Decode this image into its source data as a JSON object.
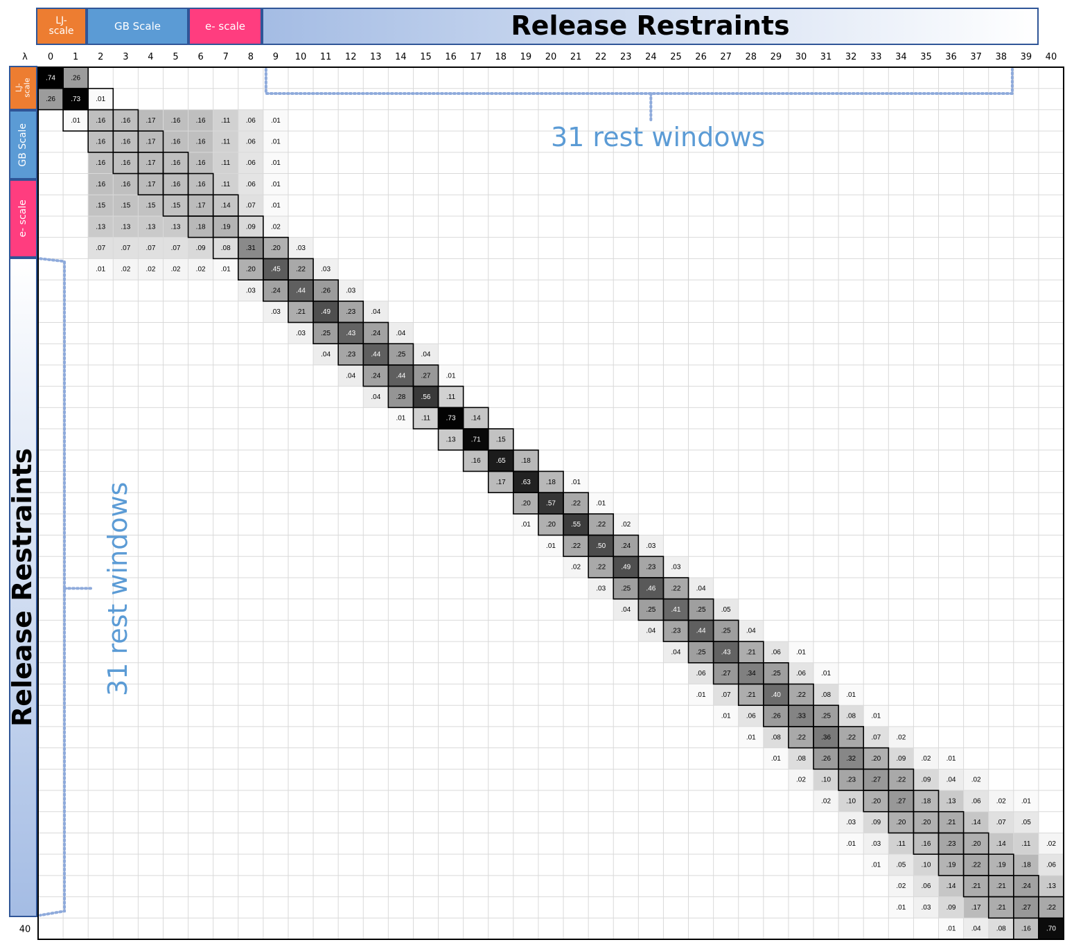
{
  "colors": {
    "lj": "#ed7d31",
    "gb": "#5b9bd5",
    "e": "#ff3d7f",
    "release_start": "#a4bce4",
    "release_end": "#ffffff",
    "band_border": "#2f5597",
    "annotation": "#5b9bd5"
  },
  "top_bands": {
    "lj": "LJ-\nscale",
    "gb": "GB Scale",
    "e": "e- scale",
    "release": "Release Restraints"
  },
  "left_bands": {
    "lj": "LJ-\nscale",
    "gb": "GB Scale",
    "e": "e- scale",
    "release": "Release Restraints"
  },
  "annotations": {
    "top": "31 rest windows",
    "left": "31 rest windows"
  },
  "chart_data": {
    "type": "heatmap",
    "corner_label": "λ",
    "x_tick_labels": [
      "0",
      "1",
      "2",
      "3",
      "4",
      "5",
      "6",
      "7",
      "8",
      "9",
      "10",
      "11",
      "12",
      "13",
      "14",
      "15",
      "16",
      "17",
      "18",
      "19",
      "20",
      "21",
      "22",
      "23",
      "24",
      "25",
      "26",
      "27",
      "28",
      "29",
      "30",
      "31",
      "32",
      "33",
      "34",
      "35",
      "36",
      "37",
      "38",
      "39",
      "40"
    ],
    "y_tick_labels": [
      "",
      "",
      "",
      "",
      "",
      "",
      "",
      "",
      "",
      "",
      "",
      "",
      "",
      "",
      "",
      "",
      "",
      "",
      "",
      "",
      "",
      "",
      "",
      "",
      "",
      "",
      "",
      "",
      "",
      "",
      "",
      "",
      "",
      "",
      "",
      "",
      "",
      "",
      "",
      "",
      "40"
    ],
    "rows": [
      [
        [
          0,
          ".74"
        ],
        [
          1,
          ".26"
        ]
      ],
      [
        [
          0,
          ".26"
        ],
        [
          1,
          ".73"
        ],
        [
          2,
          ".01"
        ]
      ],
      [
        [
          1,
          ".01"
        ],
        [
          2,
          ".16"
        ],
        [
          3,
          ".16"
        ],
        [
          4,
          ".17"
        ],
        [
          5,
          ".16"
        ],
        [
          6,
          ".16"
        ],
        [
          7,
          ".11"
        ],
        [
          8,
          ".06"
        ],
        [
          9,
          ".01"
        ]
      ],
      [
        [
          2,
          ".16"
        ],
        [
          3,
          ".16"
        ],
        [
          4,
          ".17"
        ],
        [
          5,
          ".16"
        ],
        [
          6,
          ".16"
        ],
        [
          7,
          ".11"
        ],
        [
          8,
          ".06"
        ],
        [
          9,
          ".01"
        ]
      ],
      [
        [
          2,
          ".16"
        ],
        [
          3,
          ".16"
        ],
        [
          4,
          ".17"
        ],
        [
          5,
          ".16"
        ],
        [
          6,
          ".16"
        ],
        [
          7,
          ".11"
        ],
        [
          8,
          ".06"
        ],
        [
          9,
          ".01"
        ]
      ],
      [
        [
          2,
          ".16"
        ],
        [
          3,
          ".16"
        ],
        [
          4,
          ".17"
        ],
        [
          5,
          ".16"
        ],
        [
          6,
          ".16"
        ],
        [
          7,
          ".11"
        ],
        [
          8,
          ".06"
        ],
        [
          9,
          ".01"
        ]
      ],
      [
        [
          2,
          ".15"
        ],
        [
          3,
          ".15"
        ],
        [
          4,
          ".15"
        ],
        [
          5,
          ".15"
        ],
        [
          6,
          ".17"
        ],
        [
          7,
          ".14"
        ],
        [
          8,
          ".07"
        ],
        [
          9,
          ".01"
        ]
      ],
      [
        [
          2,
          ".13"
        ],
        [
          3,
          ".13"
        ],
        [
          4,
          ".13"
        ],
        [
          5,
          ".13"
        ],
        [
          6,
          ".18"
        ],
        [
          7,
          ".19"
        ],
        [
          8,
          ".09"
        ],
        [
          9,
          ".02"
        ]
      ],
      [
        [
          2,
          ".07"
        ],
        [
          3,
          ".07"
        ],
        [
          4,
          ".07"
        ],
        [
          5,
          ".07"
        ],
        [
          6,
          ".09"
        ],
        [
          7,
          ".08"
        ],
        [
          8,
          ".31"
        ],
        [
          9,
          ".20"
        ],
        [
          10,
          ".03"
        ]
      ],
      [
        [
          2,
          ".01"
        ],
        [
          3,
          ".02"
        ],
        [
          4,
          ".02"
        ],
        [
          5,
          ".02"
        ],
        [
          6,
          ".02"
        ],
        [
          7,
          ".01"
        ],
        [
          8,
          ".20"
        ],
        [
          9,
          ".45"
        ],
        [
          10,
          ".22"
        ],
        [
          11,
          ".03"
        ]
      ],
      [
        [
          8,
          ".03"
        ],
        [
          9,
          ".24"
        ],
        [
          10,
          ".44"
        ],
        [
          11,
          ".26"
        ],
        [
          12,
          ".03"
        ]
      ],
      [
        [
          9,
          ".03"
        ],
        [
          10,
          ".21"
        ],
        [
          11,
          ".49"
        ],
        [
          12,
          ".23"
        ],
        [
          13,
          ".04"
        ]
      ],
      [
        [
          10,
          ".03"
        ],
        [
          11,
          ".25"
        ],
        [
          12,
          ".43"
        ],
        [
          13,
          ".24"
        ],
        [
          14,
          ".04"
        ]
      ],
      [
        [
          11,
          ".04"
        ],
        [
          12,
          ".23"
        ],
        [
          13,
          ".44"
        ],
        [
          14,
          ".25"
        ],
        [
          15,
          ".04"
        ]
      ],
      [
        [
          12,
          ".04"
        ],
        [
          13,
          ".24"
        ],
        [
          14,
          ".44"
        ],
        [
          15,
          ".27"
        ],
        [
          16,
          ".01"
        ]
      ],
      [
        [
          13,
          ".04"
        ],
        [
          14,
          ".28"
        ],
        [
          15,
          ".56"
        ],
        [
          16,
          ".11"
        ]
      ],
      [
        [
          14,
          ".01"
        ],
        [
          15,
          ".11"
        ],
        [
          16,
          ".73"
        ],
        [
          17,
          ".14"
        ]
      ],
      [
        [
          16,
          ".13"
        ],
        [
          17,
          ".71"
        ],
        [
          18,
          ".15"
        ]
      ],
      [
        [
          17,
          ".16"
        ],
        [
          18,
          ".65"
        ],
        [
          19,
          ".18"
        ]
      ],
      [
        [
          18,
          ".17"
        ],
        [
          19,
          ".63"
        ],
        [
          20,
          ".18"
        ],
        [
          21,
          ".01"
        ]
      ],
      [
        [
          19,
          ".20"
        ],
        [
          20,
          ".57"
        ],
        [
          21,
          ".22"
        ],
        [
          22,
          ".01"
        ]
      ],
      [
        [
          19,
          ".01"
        ],
        [
          20,
          ".20"
        ],
        [
          21,
          ".55"
        ],
        [
          22,
          ".22"
        ],
        [
          23,
          ".02"
        ]
      ],
      [
        [
          20,
          ".01"
        ],
        [
          21,
          ".22"
        ],
        [
          22,
          ".50"
        ],
        [
          23,
          ".24"
        ],
        [
          24,
          ".03"
        ]
      ],
      [
        [
          21,
          ".02"
        ],
        [
          22,
          ".22"
        ],
        [
          23,
          ".49"
        ],
        [
          24,
          ".23"
        ],
        [
          25,
          ".03"
        ]
      ],
      [
        [
          22,
          ".03"
        ],
        [
          23,
          ".25"
        ],
        [
          24,
          ".46"
        ],
        [
          25,
          ".22"
        ],
        [
          26,
          ".04"
        ]
      ],
      [
        [
          23,
          ".04"
        ],
        [
          24,
          ".25"
        ],
        [
          25,
          ".41"
        ],
        [
          26,
          ".25"
        ],
        [
          27,
          ".05"
        ]
      ],
      [
        [
          24,
          ".04"
        ],
        [
          25,
          ".23"
        ],
        [
          26,
          ".44"
        ],
        [
          27,
          ".25"
        ],
        [
          28,
          ".04"
        ]
      ],
      [
        [
          25,
          ".04"
        ],
        [
          26,
          ".25"
        ],
        [
          27,
          ".43"
        ],
        [
          28,
          ".21"
        ],
        [
          29,
          ".06"
        ],
        [
          30,
          ".01"
        ]
      ],
      [
        [
          26,
          ".06"
        ],
        [
          27,
          ".27"
        ],
        [
          28,
          ".34"
        ],
        [
          29,
          ".25"
        ],
        [
          30,
          ".06"
        ],
        [
          31,
          ".01"
        ]
      ],
      [
        [
          26,
          ".01"
        ],
        [
          27,
          ".07"
        ],
        [
          28,
          ".21"
        ],
        [
          29,
          ".40"
        ],
        [
          30,
          ".22"
        ],
        [
          31,
          ".08"
        ],
        [
          32,
          ".01"
        ]
      ],
      [
        [
          27,
          ".01"
        ],
        [
          28,
          ".06"
        ],
        [
          29,
          ".26"
        ],
        [
          30,
          ".33"
        ],
        [
          31,
          ".25"
        ],
        [
          32,
          ".08"
        ],
        [
          33,
          ".01"
        ]
      ],
      [
        [
          28,
          ".01"
        ],
        [
          29,
          ".08"
        ],
        [
          30,
          ".22"
        ],
        [
          31,
          ".36"
        ],
        [
          32,
          ".22"
        ],
        [
          33,
          ".07"
        ],
        [
          34,
          ".02"
        ]
      ],
      [
        [
          29,
          ".01"
        ],
        [
          30,
          ".08"
        ],
        [
          31,
          ".26"
        ],
        [
          32,
          ".32"
        ],
        [
          33,
          ".20"
        ],
        [
          34,
          ".09"
        ],
        [
          35,
          ".02"
        ],
        [
          36,
          ".01"
        ]
      ],
      [
        [
          30,
          ".02"
        ],
        [
          31,
          ".10"
        ],
        [
          32,
          ".23"
        ],
        [
          33,
          ".27"
        ],
        [
          34,
          ".22"
        ],
        [
          35,
          ".09"
        ],
        [
          36,
          ".04"
        ],
        [
          37,
          ".02"
        ]
      ],
      [
        [
          31,
          ".02"
        ],
        [
          32,
          ".10"
        ],
        [
          33,
          ".20"
        ],
        [
          34,
          ".27"
        ],
        [
          35,
          ".18"
        ],
        [
          36,
          ".13"
        ],
        [
          37,
          ".06"
        ],
        [
          38,
          ".02"
        ],
        [
          39,
          ".01"
        ]
      ],
      [
        [
          32,
          ".03"
        ],
        [
          33,
          ".09"
        ],
        [
          34,
          ".20"
        ],
        [
          35,
          ".20"
        ],
        [
          36,
          ".21"
        ],
        [
          37,
          ".14"
        ],
        [
          38,
          ".07"
        ],
        [
          39,
          ".05"
        ]
      ],
      [
        [
          32,
          ".01"
        ],
        [
          33,
          ".03"
        ],
        [
          34,
          ".11"
        ],
        [
          35,
          ".16"
        ],
        [
          36,
          ".23"
        ],
        [
          37,
          ".20"
        ],
        [
          38,
          ".14"
        ],
        [
          39,
          ".11"
        ],
        [
          40,
          ".02"
        ]
      ],
      [
        [
          33,
          ".01"
        ],
        [
          34,
          ".05"
        ],
        [
          35,
          ".10"
        ],
        [
          36,
          ".19"
        ],
        [
          37,
          ".22"
        ],
        [
          38,
          ".19"
        ],
        [
          39,
          ".18"
        ],
        [
          40,
          ".06"
        ]
      ],
      [
        [
          34,
          ".02"
        ],
        [
          35,
          ".06"
        ],
        [
          36,
          ".14"
        ],
        [
          37,
          ".21"
        ],
        [
          38,
          ".21"
        ],
        [
          39,
          ".24"
        ],
        [
          40,
          ".13"
        ]
      ],
      [
        [
          34,
          ".01"
        ],
        [
          35,
          ".03"
        ],
        [
          36,
          ".09"
        ],
        [
          37,
          ".17"
        ],
        [
          38,
          ".21"
        ],
        [
          39,
          ".27"
        ],
        [
          40,
          ".22"
        ]
      ],
      [
        [
          36,
          ".01"
        ],
        [
          37,
          ".04"
        ],
        [
          38,
          ".08"
        ],
        [
          39,
          ".16"
        ],
        [
          40,
          ".70"
        ]
      ]
    ]
  }
}
